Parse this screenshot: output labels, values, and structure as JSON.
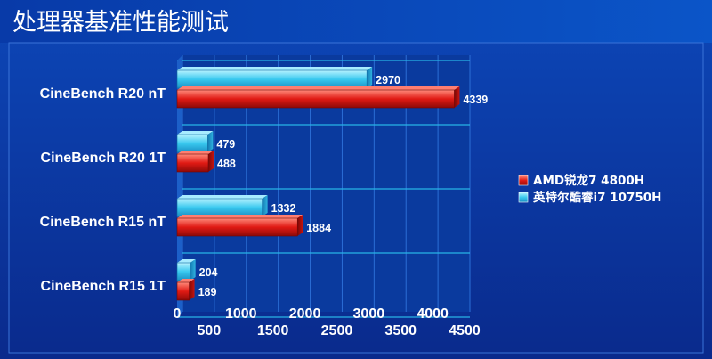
{
  "chart_data": {
    "type": "bar",
    "orientation": "horizontal",
    "title": "处理器基准性能测试",
    "categories": [
      "CineBench R20 nT",
      "CineBench R20 1T",
      "CineBench R15 nT",
      "CineBench R15 1T"
    ],
    "series": [
      {
        "name": "英特尔酷睿i7 10750H",
        "values": [
          2970,
          479,
          1332,
          204
        ],
        "color": "#33d0f0"
      },
      {
        "name": "AMD锐龙7 4800H",
        "values": [
          4339,
          488,
          1884,
          189
        ],
        "color": "#e81e1e"
      }
    ],
    "legend_order": [
      1,
      0
    ],
    "xlim": [
      0,
      4500
    ],
    "x_ticks": [
      0,
      500,
      1000,
      1500,
      2000,
      2500,
      3000,
      3500,
      4000,
      4500
    ],
    "grid": true,
    "legend_position": "right"
  },
  "colors": {
    "background_top": "#0a3fa6",
    "background_bottom": "#0b2b8f",
    "label_text": "#ffffff",
    "grid_line": "#28b4e6"
  }
}
